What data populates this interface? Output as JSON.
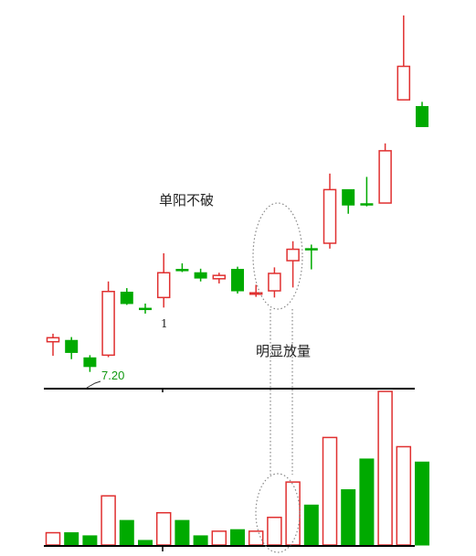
{
  "chart_data": {
    "type": "candlestick",
    "colors": {
      "up": "#e03030",
      "down": "#00aa00",
      "axis": "#000000",
      "annotation": "#888888"
    },
    "price_panel": {
      "ylim": [
        6.8,
        12.6
      ],
      "candles": [
        {
          "open": 7.5,
          "high": 7.62,
          "low": 7.29,
          "close": 7.56,
          "dir": "up"
        },
        {
          "open": 7.52,
          "high": 7.57,
          "low": 7.24,
          "close": 7.34,
          "dir": "down"
        },
        {
          "open": 7.26,
          "high": 7.3,
          "low": 7.05,
          "close": 7.13,
          "dir": "down"
        },
        {
          "open": 7.3,
          "high": 8.4,
          "low": 7.27,
          "close": 8.25,
          "dir": "up"
        },
        {
          "open": 8.24,
          "high": 8.3,
          "low": 8.05,
          "close": 8.07,
          "dir": "down"
        },
        {
          "open": 8.0,
          "high": 8.07,
          "low": 7.92,
          "close": 7.99,
          "dir": "down"
        },
        {
          "open": 8.16,
          "high": 8.82,
          "low": 8.01,
          "close": 8.53,
          "dir": "up"
        },
        {
          "open": 8.58,
          "high": 8.67,
          "low": 8.54,
          "close": 8.56,
          "dir": "down"
        },
        {
          "open": 8.53,
          "high": 8.59,
          "low": 8.4,
          "close": 8.45,
          "dir": "down"
        },
        {
          "open": 8.44,
          "high": 8.53,
          "low": 8.37,
          "close": 8.49,
          "dir": "up"
        },
        {
          "open": 8.58,
          "high": 8.62,
          "low": 8.22,
          "close": 8.26,
          "dir": "down"
        },
        {
          "open": 8.21,
          "high": 8.35,
          "low": 8.17,
          "close": 8.23,
          "dir": "up"
        },
        {
          "open": 8.26,
          "high": 8.61,
          "low": 8.16,
          "close": 8.52,
          "dir": "up"
        },
        {
          "open": 8.71,
          "high": 9.0,
          "low": 8.31,
          "close": 8.88,
          "dir": "up"
        },
        {
          "open": 8.89,
          "high": 8.95,
          "low": 8.58,
          "close": 8.89,
          "dir": "down"
        },
        {
          "open": 8.97,
          "high": 10.01,
          "low": 8.89,
          "close": 9.77,
          "dir": "up"
        },
        {
          "open": 9.77,
          "high": 9.77,
          "low": 9.41,
          "close": 9.54,
          "dir": "down"
        },
        {
          "open": 9.56,
          "high": 9.96,
          "low": 9.52,
          "close": 9.55,
          "dir": "down"
        },
        {
          "open": 9.57,
          "high": 10.46,
          "low": 9.57,
          "close": 10.35,
          "dir": "up"
        },
        {
          "open": 11.11,
          "high": 12.37,
          "low": 11.11,
          "close": 11.61,
          "dir": "up"
        },
        {
          "open": 11.01,
          "high": 11.08,
          "low": 10.71,
          "close": 10.71,
          "dir": "down"
        }
      ]
    },
    "volume_panel": {
      "ylim": [
        0,
        100
      ],
      "volumes": [
        {
          "value": 8,
          "dir": "up"
        },
        {
          "value": 8,
          "dir": "down"
        },
        {
          "value": 6,
          "dir": "down"
        },
        {
          "value": 32,
          "dir": "up"
        },
        {
          "value": 16,
          "dir": "down"
        },
        {
          "value": 3,
          "dir": "down"
        },
        {
          "value": 21,
          "dir": "up"
        },
        {
          "value": 16,
          "dir": "down"
        },
        {
          "value": 6,
          "dir": "down"
        },
        {
          "value": 9,
          "dir": "up"
        },
        {
          "value": 10,
          "dir": "down"
        },
        {
          "value": 9,
          "dir": "up"
        },
        {
          "value": 18,
          "dir": "up"
        },
        {
          "value": 41,
          "dir": "up"
        },
        {
          "value": 26,
          "dir": "down"
        },
        {
          "value": 70,
          "dir": "up"
        },
        {
          "value": 36,
          "dir": "down"
        },
        {
          "value": 56,
          "dir": "down"
        },
        {
          "value": 100,
          "dir": "up"
        },
        {
          "value": 64,
          "dir": "up"
        },
        {
          "value": 54,
          "dir": "down"
        }
      ]
    },
    "annotations": {
      "single_yang": "单阳不破",
      "volume_note": "明显放量",
      "price_label": "7.20",
      "marker": "1"
    }
  }
}
